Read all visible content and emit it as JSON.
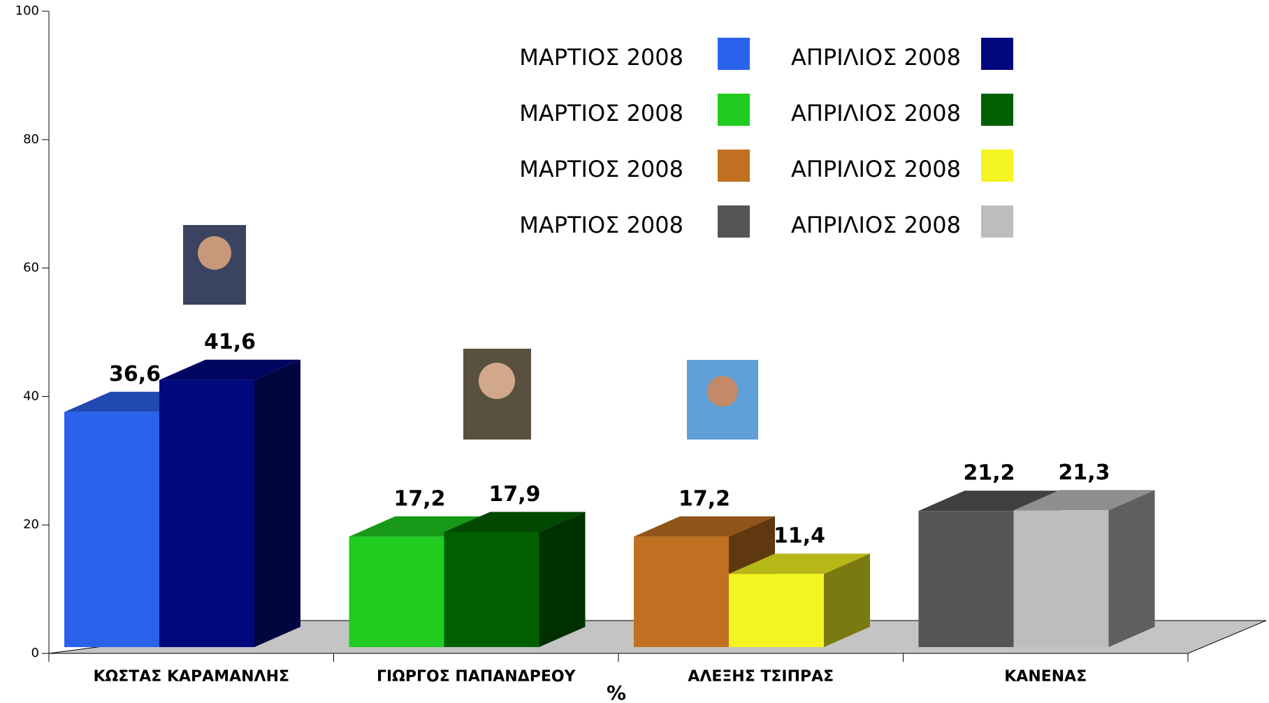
{
  "chart_data": {
    "type": "bar3d",
    "categories": [
      "ΚΩΣΤΑΣ ΚΑΡΑΜΑΝΛΗΣ",
      "ΓΙΩΡΓΟΣ ΠΑΠΑΝΔΡΕΟΥ",
      "ΑΛΕΞΗΣ ΤΣΙΠΡΑΣ",
      "ΚΑΝΕΝΑΣ"
    ],
    "series": [
      {
        "name": "ΜΑΡΤΙΟΣ 2008",
        "colors": [
          "#2a62ec",
          "#1fcc1f",
          "#c07020",
          "#555555"
        ],
        "values": [
          36.6,
          17.2,
          17.2,
          21.2
        ],
        "value_labels": [
          "36,6",
          "17,2",
          "17,2",
          "21,2"
        ]
      },
      {
        "name": "ΑΠΡΙΛΙΟΣ 2008",
        "colors": [
          "#00087e",
          "#006000",
          "#f4f420",
          "#bdbdbd"
        ],
        "values": [
          41.6,
          17.9,
          11.4,
          21.3
        ],
        "value_labels": [
          "41,6",
          "17,9",
          "11,4",
          "21,3"
        ]
      }
    ],
    "xlabel": "%",
    "ylim": [
      0,
      100
    ],
    "yticks": [
      0,
      20,
      40,
      60,
      80,
      100
    ],
    "grid": false
  }
}
